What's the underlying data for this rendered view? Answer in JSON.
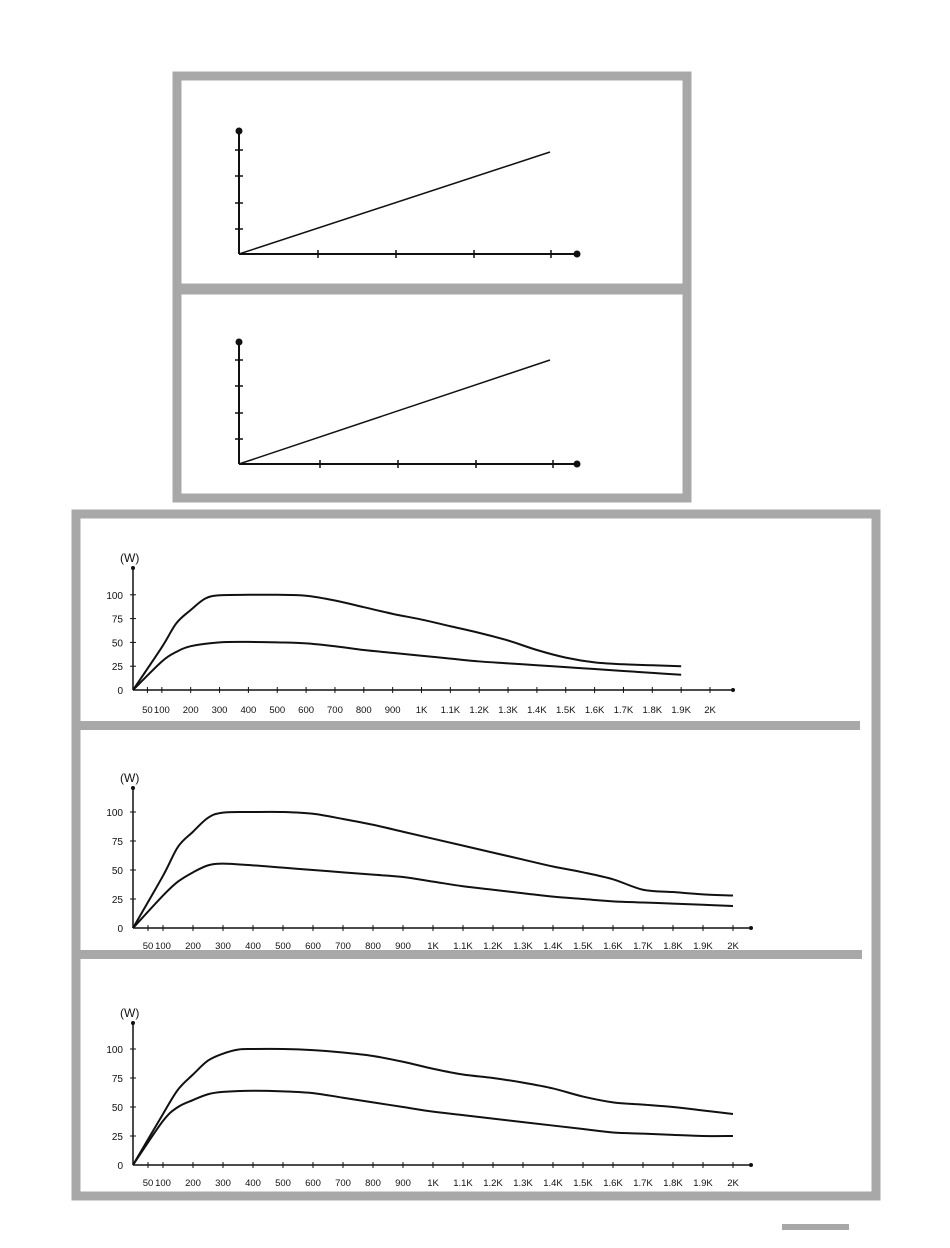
{
  "colors": {
    "frame": "#a8a8a8",
    "ink": "#111111",
    "background": "#ffffff"
  },
  "top_diagrams": [
    {
      "line_end": [
        4,
        4
      ]
    },
    {
      "line_end": [
        4,
        4
      ]
    }
  ],
  "chart_data": [
    {
      "type": "line",
      "ylabel": "(W)",
      "yticks": [
        "0",
        "25",
        "50",
        "75",
        "100"
      ],
      "ylim": [
        0,
        125
      ],
      "xticks": [
        "50",
        "100",
        "200",
        "300",
        "400",
        "500",
        "600",
        "700",
        "800",
        "900",
        "1K",
        "1.1K",
        "1.2K",
        "1.3K",
        "1.4K",
        "1.5K",
        "1.6K",
        "1.7K",
        "1.8K",
        "1.9K",
        "2K"
      ],
      "x_numeric": [
        50,
        100,
        200,
        300,
        400,
        500,
        600,
        700,
        800,
        900,
        1000,
        1100,
        1200,
        1300,
        1400,
        1500,
        1600,
        1700,
        1800,
        1900,
        2000
      ],
      "xlim": [
        0,
        2090
      ],
      "series": [
        {
          "points": [
            [
              0,
              0
            ],
            [
              100,
              45
            ],
            [
              150,
              70
            ],
            [
              200,
              84
            ],
            [
              250,
              96
            ],
            [
              300,
              99.5
            ],
            [
              400,
              100
            ],
            [
              500,
              100
            ],
            [
              600,
              99
            ],
            [
              700,
              94
            ],
            [
              800,
              87
            ],
            [
              900,
              80
            ],
            [
              1000,
              74
            ],
            [
              1100,
              67
            ],
            [
              1200,
              60
            ],
            [
              1300,
              52
            ],
            [
              1400,
              42
            ],
            [
              1500,
              34
            ],
            [
              1600,
              29
            ],
            [
              1700,
              27
            ],
            [
              1800,
              26
            ],
            [
              1900,
              25
            ]
          ]
        },
        {
          "points": [
            [
              0,
              0
            ],
            [
              100,
              30
            ],
            [
              150,
              40
            ],
            [
              200,
              46
            ],
            [
              300,
              50
            ],
            [
              400,
              50.5
            ],
            [
              500,
              50
            ],
            [
              600,
              49
            ],
            [
              700,
              46
            ],
            [
              800,
              42
            ],
            [
              900,
              39
            ],
            [
              1000,
              36
            ],
            [
              1100,
              33
            ],
            [
              1200,
              30
            ],
            [
              1300,
              28
            ],
            [
              1400,
              26
            ],
            [
              1500,
              24
            ],
            [
              1600,
              22
            ],
            [
              1700,
              20
            ],
            [
              1800,
              18
            ],
            [
              1900,
              16
            ]
          ]
        }
      ]
    },
    {
      "type": "line",
      "ylabel": "(W)",
      "yticks": [
        "0",
        "25",
        "50",
        "75",
        "100"
      ],
      "ylim": [
        0,
        125
      ],
      "xticks": [
        "50",
        "100",
        "200",
        "300",
        "400",
        "500",
        "600",
        "700",
        "800",
        "900",
        "1K",
        "1.1K",
        "1.2K",
        "1.3K",
        "1.4K",
        "1.5K",
        "1.6K",
        "1.7K",
        "1.8K",
        "1.9K",
        "2K"
      ],
      "x_numeric": [
        50,
        100,
        200,
        300,
        400,
        500,
        600,
        700,
        800,
        900,
        1000,
        1100,
        1200,
        1300,
        1400,
        1500,
        1600,
        1700,
        1800,
        1900,
        2000
      ],
      "xlim": [
        0,
        2090
      ],
      "series": [
        {
          "points": [
            [
              0,
              0
            ],
            [
              100,
              45
            ],
            [
              150,
              70
            ],
            [
              200,
              83
            ],
            [
              250,
              95
            ],
            [
              300,
              99.5
            ],
            [
              400,
              100
            ],
            [
              500,
              100
            ],
            [
              600,
              98.5
            ],
            [
              700,
              94
            ],
            [
              800,
              89
            ],
            [
              900,
              83
            ],
            [
              1000,
              77
            ],
            [
              1100,
              71
            ],
            [
              1200,
              65
            ],
            [
              1300,
              59
            ],
            [
              1400,
              53
            ],
            [
              1500,
              48
            ],
            [
              1600,
              42
            ],
            [
              1700,
              33
            ],
            [
              1800,
              31
            ],
            [
              1900,
              29
            ],
            [
              2000,
              28
            ]
          ]
        },
        {
          "points": [
            [
              0,
              0
            ],
            [
              100,
              28
            ],
            [
              150,
              40
            ],
            [
              200,
              48
            ],
            [
              250,
              54
            ],
            [
              300,
              55.5
            ],
            [
              400,
              54
            ],
            [
              500,
              52
            ],
            [
              600,
              50
            ],
            [
              700,
              48
            ],
            [
              800,
              46
            ],
            [
              900,
              44
            ],
            [
              1000,
              40
            ],
            [
              1100,
              36
            ],
            [
              1200,
              33
            ],
            [
              1300,
              30
            ],
            [
              1400,
              27
            ],
            [
              1500,
              25
            ],
            [
              1600,
              23
            ],
            [
              1700,
              22
            ],
            [
              1800,
              21
            ],
            [
              1900,
              20
            ],
            [
              2000,
              19
            ]
          ]
        }
      ]
    },
    {
      "type": "line",
      "ylabel": "(W)",
      "yticks": [
        "0",
        "25",
        "50",
        "75",
        "100"
      ],
      "ylim": [
        0,
        125
      ],
      "xticks": [
        "50",
        "100",
        "200",
        "300",
        "400",
        "500",
        "600",
        "700",
        "800",
        "900",
        "1K",
        "1.1K",
        "1.2K",
        "1.3K",
        "1.4K",
        "1.5K",
        "1.6K",
        "1.7K",
        "1.8K",
        "1.9K",
        "2K"
      ],
      "x_numeric": [
        50,
        100,
        200,
        300,
        400,
        500,
        600,
        700,
        800,
        900,
        1000,
        1100,
        1200,
        1300,
        1400,
        1500,
        1600,
        1700,
        1800,
        1900,
        2000
      ],
      "xlim": [
        0,
        2090
      ],
      "series": [
        {
          "points": [
            [
              0,
              0
            ],
            [
              100,
              44
            ],
            [
              150,
              65
            ],
            [
              200,
              78
            ],
            [
              250,
              90
            ],
            [
              300,
              96
            ],
            [
              350,
              99.5
            ],
            [
              400,
              100
            ],
            [
              500,
              100
            ],
            [
              600,
              99
            ],
            [
              700,
              97
            ],
            [
              800,
              94
            ],
            [
              900,
              89
            ],
            [
              1000,
              83
            ],
            [
              1100,
              78
            ],
            [
              1200,
              75
            ],
            [
              1300,
              71
            ],
            [
              1400,
              66
            ],
            [
              1500,
              59
            ],
            [
              1600,
              54
            ],
            [
              1700,
              52
            ],
            [
              1800,
              50
            ],
            [
              1900,
              47
            ],
            [
              2000,
              44
            ]
          ]
        },
        {
          "points": [
            [
              0,
              0
            ],
            [
              100,
              38
            ],
            [
              150,
              50
            ],
            [
              200,
              56
            ],
            [
              250,
              61
            ],
            [
              300,
              63
            ],
            [
              400,
              64
            ],
            [
              500,
              63.5
            ],
            [
              600,
              62
            ],
            [
              700,
              58
            ],
            [
              800,
              54
            ],
            [
              900,
              50
            ],
            [
              1000,
              46
            ],
            [
              1100,
              43
            ],
            [
              1200,
              40
            ],
            [
              1300,
              37
            ],
            [
              1400,
              34
            ],
            [
              1500,
              31
            ],
            [
              1600,
              28
            ],
            [
              1700,
              27
            ],
            [
              1800,
              26
            ],
            [
              1900,
              25
            ],
            [
              2000,
              25
            ]
          ]
        }
      ]
    }
  ]
}
